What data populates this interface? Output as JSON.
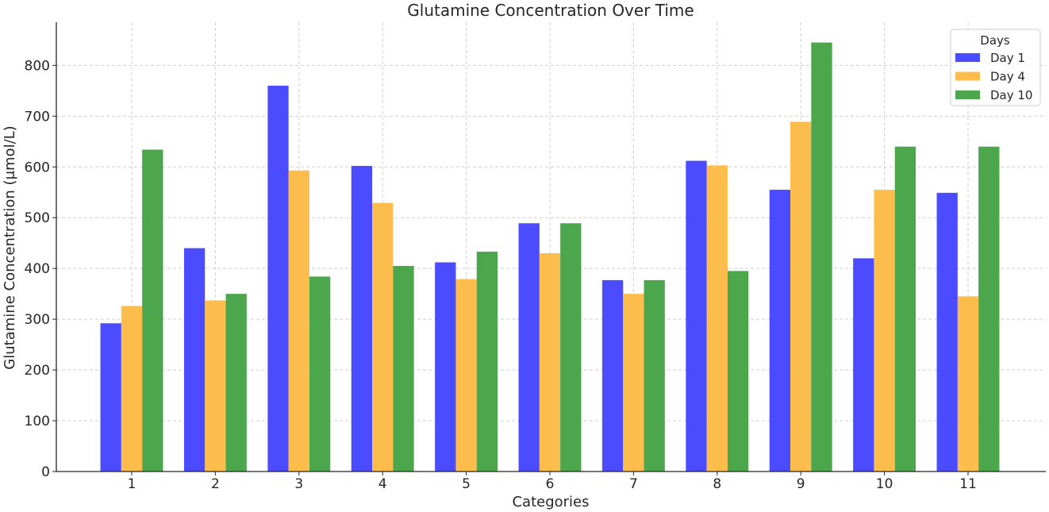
{
  "chart_data": {
    "type": "bar",
    "title": "Glutamine Concentration Over Time",
    "xlabel": "Categories",
    "ylabel": "Glutamine Concentration (μmol/L)",
    "categories": [
      "1",
      "2",
      "3",
      "4",
      "5",
      "6",
      "7",
      "8",
      "9",
      "10",
      "11"
    ],
    "series": [
      {
        "name": "Day 1",
        "color": "#4b4bff",
        "values": [
          292,
          440,
          760,
          602,
          412,
          489,
          377,
          612,
          555,
          420,
          549
        ]
      },
      {
        "name": "Day 4",
        "color": "#fdbd4c",
        "values": [
          326,
          337,
          593,
          529,
          379,
          430,
          350,
          603,
          689,
          555,
          345
        ]
      },
      {
        "name": "Day 10",
        "color": "#4ca64c",
        "values": [
          634,
          350,
          384,
          405,
          433,
          489,
          377,
          395,
          845,
          640,
          640
        ]
      }
    ],
    "ylim": [
      0,
      885
    ],
    "yticks": [
      0,
      100,
      200,
      300,
      400,
      500,
      600,
      700,
      800
    ],
    "grid": true,
    "legend": {
      "title": "Days",
      "placement": "top-right"
    }
  }
}
